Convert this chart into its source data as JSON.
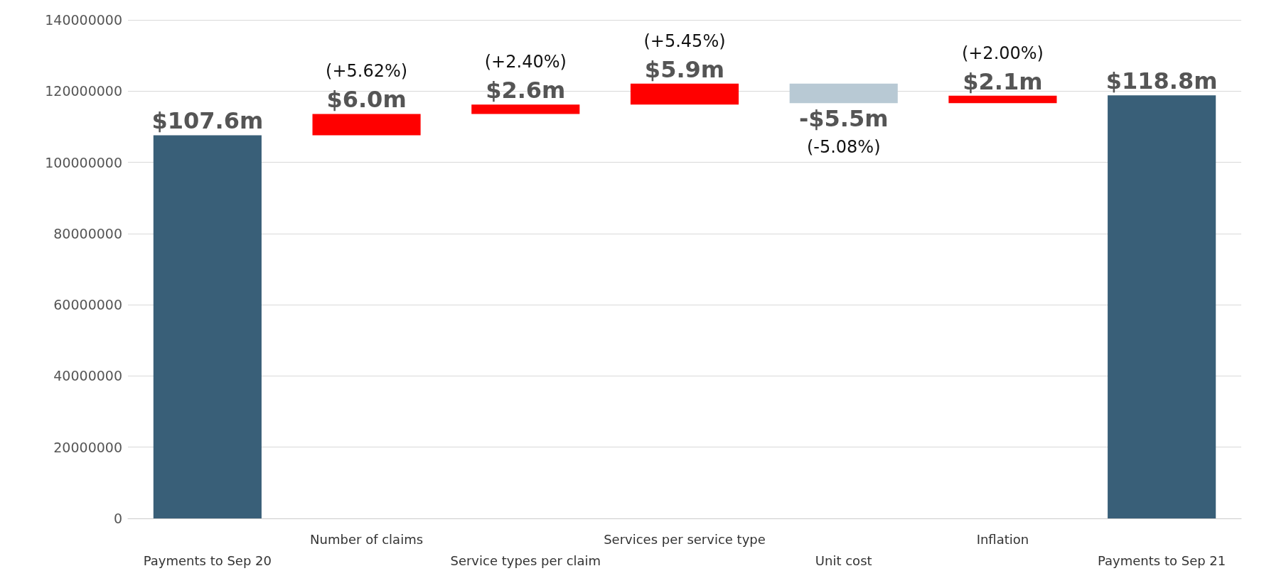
{
  "chart_data": {
    "type": "bar",
    "categories": [
      "Payments to Sep 20",
      "Number of claims",
      "Service types per claim",
      "Services per service type",
      "Unit cost",
      "Inflation",
      "Payments to Sep 21"
    ],
    "values": [
      107600000,
      6000000,
      2600000,
      5900000,
      -5500000,
      2100000,
      118800000
    ],
    "base": [
      0,
      107600000,
      113600000,
      116200000,
      122100000,
      116600000,
      0
    ],
    "colors": [
      "#395f78",
      "#ff0000",
      "#ff0000",
      "#ff0000",
      "#b8c9d4",
      "#ff0000",
      "#395f78"
    ],
    "value_labels": [
      "$107.6m",
      "$6.0m",
      "$2.6m",
      "$5.9m",
      "-$5.5m",
      "$2.1m",
      "$118.8m"
    ],
    "annotations": [
      "(+5.62%)",
      "(+2.40%)",
      "(+5.45%)",
      "(-5.08%)",
      "(+2.00%)"
    ],
    "ylim": [
      0,
      140000000
    ],
    "yticks": [
      0,
      20000000,
      40000000,
      60000000,
      80000000,
      100000000,
      120000000,
      140000000
    ],
    "grid": "y"
  }
}
